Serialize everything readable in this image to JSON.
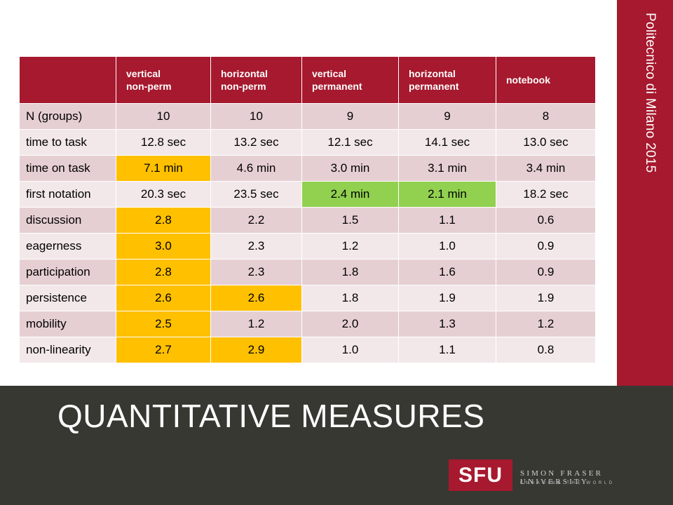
{
  "side_label": "Politecnico di Milano 2015",
  "slide_title": "QUANTITATIVE MEASURES",
  "logo": {
    "mark": "SFU",
    "name": "SIMON FRASER UNIVERSITY",
    "tagline": "ENGAGING THE WORLD"
  },
  "colors": {
    "brand_red": "#a6192e",
    "footer_dark": "#373832",
    "highlight_yellow": "#ffc000",
    "highlight_green": "#92d050"
  },
  "table": {
    "columns": [
      {
        "line1": "vertical",
        "line2": "non-perm"
      },
      {
        "line1": "horizontal",
        "line2": "non-perm"
      },
      {
        "line1": "vertical",
        "line2": "permanent"
      },
      {
        "line1": "horizontal",
        "line2": "permanent"
      },
      {
        "line1": "notebook",
        "line2": ""
      }
    ],
    "rows": [
      {
        "label": "N (groups)",
        "cells": [
          "10",
          "10",
          "9",
          "9",
          "8"
        ]
      },
      {
        "label": "time to task",
        "cells": [
          "12.8 sec",
          "13.2 sec",
          "12.1 sec",
          "14.1 sec",
          "13.0 sec"
        ]
      },
      {
        "label": "time on task",
        "cells": [
          "7.1 min",
          "4.6 min",
          "3.0 min",
          "3.1 min",
          "3.4 min"
        ]
      },
      {
        "label": "first notation",
        "cells": [
          "20.3 sec",
          "23.5 sec",
          "2.4 min",
          "2.1 min",
          "18.2 sec"
        ]
      },
      {
        "label": "discussion",
        "cells": [
          "2.8",
          "2.2",
          "1.5",
          "1.1",
          "0.6"
        ]
      },
      {
        "label": "eagerness",
        "cells": [
          "3.0",
          "2.3",
          "1.2",
          "1.0",
          "0.9"
        ]
      },
      {
        "label": "participation",
        "cells": [
          "2.8",
          "2.3",
          "1.8",
          "1.6",
          "0.9"
        ]
      },
      {
        "label": "persistence",
        "cells": [
          "2.6",
          "2.6",
          "1.8",
          "1.9",
          "1.9"
        ]
      },
      {
        "label": "mobility",
        "cells": [
          "2.5",
          "1.2",
          "2.0",
          "1.3",
          "1.2"
        ]
      },
      {
        "label": "non-linearity",
        "cells": [
          "2.7",
          "2.9",
          "1.0",
          "1.1",
          "0.8"
        ]
      }
    ]
  }
}
